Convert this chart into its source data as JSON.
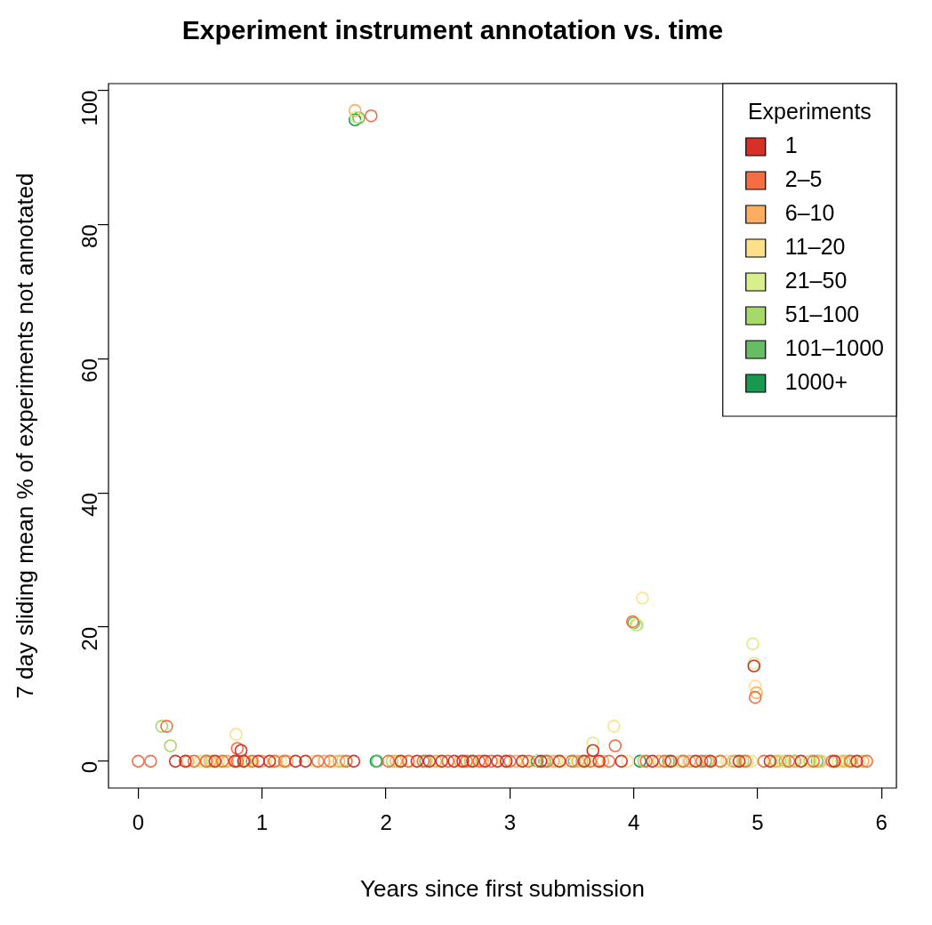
{
  "chart_data": {
    "type": "scatter",
    "title": "Experiment instrument annotation vs. time",
    "xlabel": "Years since first submission",
    "ylabel": "7 day sliding mean % of experiments not annotated",
    "legend_title": "Experiments",
    "xlim": [
      -0.24,
      6.12
    ],
    "ylim": [
      -4,
      101
    ],
    "xticks": [
      0,
      1,
      2,
      3,
      4,
      5,
      6
    ],
    "yticks": [
      0,
      20,
      40,
      60,
      80,
      100
    ],
    "grid": false,
    "legend": "top right",
    "marker": "circle",
    "series": [
      {
        "name": "1",
        "color": "#d73027",
        "x": [
          0.3,
          0.38,
          0.62,
          0.78,
          0.83,
          0.85,
          0.97,
          1.06,
          1.27,
          1.35,
          1.74,
          2.12,
          2.25,
          2.35,
          2.45,
          2.55,
          2.62,
          2.7,
          2.8,
          2.9,
          2.97,
          3.1,
          3.25,
          3.4,
          3.6,
          3.67,
          3.72,
          3.9,
          4.15,
          4.3,
          4.5,
          4.62,
          4.85,
          4.97,
          5.1,
          5.35,
          5.62,
          5.8
        ],
        "values": [
          0,
          0,
          0,
          0,
          1.6,
          0,
          0,
          0,
          0,
          0,
          0,
          0,
          0,
          0,
          0,
          0,
          0,
          0,
          0,
          0,
          0,
          0,
          0,
          0,
          0,
          1.6,
          0,
          0,
          0,
          0,
          0,
          0,
          0,
          14.2,
          0,
          0,
          0,
          0
        ]
      },
      {
        "name": "2–5",
        "color": "#f46d43",
        "x": [
          0,
          0.1,
          0.23,
          0.45,
          0.55,
          0.68,
          0.8,
          0.8,
          0.92,
          1.1,
          1.18,
          1.45,
          1.55,
          1.68,
          1.88,
          2.02,
          2.18,
          2.3,
          2.5,
          2.65,
          2.75,
          2.85,
          3,
          3.15,
          3.3,
          3.5,
          3.65,
          3.8,
          3.85,
          3.99,
          4.1,
          4.25,
          4.4,
          4.55,
          4.7,
          4.9,
          4.98,
          5.05,
          5.25,
          5.45,
          5.6,
          5.75,
          5.88
        ],
        "values": [
          0,
          0,
          5.2,
          0,
          0,
          0,
          0,
          1.9,
          0,
          0,
          0,
          0,
          0,
          0,
          96.2,
          0,
          0,
          0,
          0,
          0,
          0,
          0,
          0,
          0,
          0,
          0,
          0,
          0,
          2.3,
          20.8,
          0,
          0,
          0,
          0,
          0,
          0,
          9.5,
          0,
          0,
          0,
          0,
          0,
          0
        ]
      },
      {
        "name": "6–10",
        "color": "#fdae61",
        "x": [
          0.4,
          0.58,
          0.72,
          1,
          1.2,
          1.5,
          1.62,
          1.75,
          2.08,
          2.4,
          2.6,
          2.78,
          3.05,
          3.35,
          3.55,
          3.75,
          4.2,
          4.45,
          4.6,
          4.8,
          4.99,
          5.15,
          5.3,
          5.5,
          5.7,
          5.85
        ],
        "values": [
          0,
          0,
          0,
          0,
          0,
          0,
          0,
          97,
          0,
          0,
          0,
          0,
          0,
          0,
          0,
          0,
          0,
          0,
          0,
          0,
          10.2,
          0,
          0,
          0,
          0,
          0
        ]
      },
      {
        "name": "11–20",
        "color": "#fee08b",
        "x": [
          0.5,
          0.65,
          0.79,
          0.88,
          1.12,
          1.42,
          1.58,
          2.2,
          2.5,
          2.95,
          3.2,
          3.45,
          3.7,
          3.84,
          3.95,
          4.07,
          4.35,
          4.75,
          4.92,
          4.98,
          5.2,
          5.4,
          5.65,
          5.82
        ],
        "values": [
          0,
          0,
          4,
          0,
          0,
          0,
          0,
          0,
          0,
          0,
          0,
          0,
          0,
          5.2,
          0,
          24.3,
          0,
          0,
          0,
          11.2,
          0,
          0,
          0,
          0
        ]
      },
      {
        "name": "21–50",
        "color": "#d9ef8b",
        "x": [
          0.52,
          0.7,
          0.9,
          1.15,
          1.76,
          2.1,
          2.42,
          3.12,
          3.38,
          3.62,
          3.67,
          4.03,
          4.22,
          4.48,
          4.68,
          4.95,
          4.96,
          4.97,
          5.12,
          5.28,
          5.52,
          5.72
        ],
        "values": [
          0,
          0,
          0,
          0,
          96,
          0,
          0,
          0,
          0,
          0,
          2.7,
          20.3,
          0,
          0,
          0,
          0,
          17.5,
          14.6,
          0,
          0,
          0,
          0
        ]
      },
      {
        "name": "51–100",
        "color": "#a6d96a",
        "x": [
          0.19,
          0.26,
          0.6,
          0.87,
          1.65,
          2.05,
          2.68,
          3.3,
          3.58,
          4.02,
          4.08,
          4.38,
          4.88,
          5.18,
          5.42,
          5.68
        ],
        "values": [
          5.2,
          2.3,
          0,
          0,
          0,
          0,
          0,
          0,
          0,
          20.3,
          0,
          0,
          0,
          0,
          0,
          0
        ]
      },
      {
        "name": "101–1000",
        "color": "#66bd63",
        "x": [
          0.55,
          0.86,
          1.78,
          1.93,
          2.32,
          3.28,
          3.52,
          4,
          4.28,
          4.58,
          4.82,
          5.22,
          5.48,
          5.74
        ],
        "values": [
          0,
          0,
          95.9,
          0,
          0,
          0,
          0,
          20.6,
          0,
          0,
          0,
          0,
          0,
          0
        ]
      },
      {
        "name": "1000+",
        "color": "#1a9850",
        "x": [
          1.75,
          1.92,
          3.22,
          4.05,
          5.3
        ],
        "values": [
          95.6,
          0,
          0,
          0,
          0
        ]
      }
    ]
  }
}
